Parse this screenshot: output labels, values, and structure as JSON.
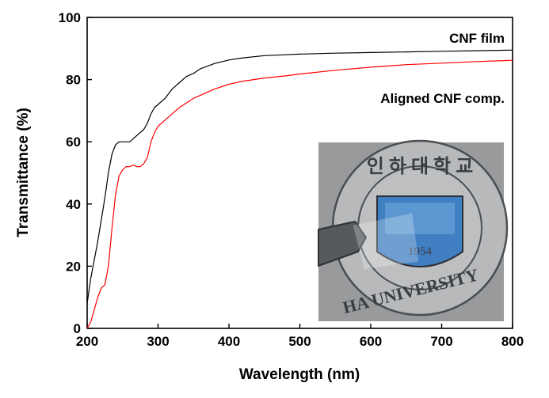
{
  "chart_data": {
    "type": "line",
    "title": "",
    "xlabel": "Wavelength (nm)",
    "ylabel": "Transmittance (%)",
    "xlim": [
      200,
      800
    ],
    "ylim": [
      0,
      100
    ],
    "x_ticks": [
      200,
      300,
      400,
      500,
      600,
      700,
      800
    ],
    "y_ticks": [
      0,
      20,
      40,
      60,
      80,
      100
    ],
    "grid": false,
    "legend_position": "inline-labels-top-right",
    "series": [
      {
        "name": "CNF film",
        "color": "#000000",
        "points": [
          [
            200,
            8
          ],
          [
            205,
            16
          ],
          [
            210,
            22
          ],
          [
            215,
            28
          ],
          [
            220,
            35
          ],
          [
            225,
            42
          ],
          [
            230,
            50
          ],
          [
            235,
            56
          ],
          [
            240,
            59
          ],
          [
            245,
            60
          ],
          [
            250,
            60
          ],
          [
            255,
            60
          ],
          [
            260,
            60
          ],
          [
            265,
            61
          ],
          [
            270,
            62
          ],
          [
            275,
            63
          ],
          [
            280,
            64
          ],
          [
            285,
            66
          ],
          [
            290,
            69
          ],
          [
            295,
            71
          ],
          [
            300,
            72
          ],
          [
            310,
            74
          ],
          [
            320,
            77
          ],
          [
            330,
            79
          ],
          [
            340,
            81
          ],
          [
            350,
            82
          ],
          [
            360,
            83.5
          ],
          [
            380,
            85.2
          ],
          [
            400,
            86.3
          ],
          [
            420,
            87
          ],
          [
            450,
            87.7
          ],
          [
            480,
            88
          ],
          [
            500,
            88.2
          ],
          [
            550,
            88.5
          ],
          [
            600,
            88.7
          ],
          [
            650,
            88.9
          ],
          [
            700,
            89.1
          ],
          [
            750,
            89.3
          ],
          [
            800,
            89.5
          ]
        ]
      },
      {
        "name": "Aligned CNF comp.",
        "color": "#ff0000",
        "points": [
          [
            200,
            0
          ],
          [
            205,
            2
          ],
          [
            210,
            6
          ],
          [
            215,
            10
          ],
          [
            220,
            13
          ],
          [
            225,
            14
          ],
          [
            230,
            20
          ],
          [
            235,
            32
          ],
          [
            240,
            43
          ],
          [
            245,
            49
          ],
          [
            250,
            51
          ],
          [
            255,
            52
          ],
          [
            260,
            52
          ],
          [
            265,
            52.5
          ],
          [
            270,
            52
          ],
          [
            275,
            52
          ],
          [
            280,
            53
          ],
          [
            285,
            55
          ],
          [
            290,
            60
          ],
          [
            295,
            63
          ],
          [
            300,
            65
          ],
          [
            310,
            67
          ],
          [
            320,
            69
          ],
          [
            330,
            71
          ],
          [
            340,
            72.5
          ],
          [
            350,
            74
          ],
          [
            360,
            75
          ],
          [
            380,
            77
          ],
          [
            400,
            78.5
          ],
          [
            420,
            79.5
          ],
          [
            450,
            80.5
          ],
          [
            480,
            81.2
          ],
          [
            500,
            81.8
          ],
          [
            550,
            83
          ],
          [
            600,
            84
          ],
          [
            650,
            84.8
          ],
          [
            700,
            85.3
          ],
          [
            750,
            85.8
          ],
          [
            800,
            86.2
          ]
        ]
      }
    ],
    "inset_photo": {
      "seal_text_top": "인 하 대 학 교",
      "seal_text_bottom": "HA UNIVERSITY",
      "seal_year": "1954"
    }
  }
}
